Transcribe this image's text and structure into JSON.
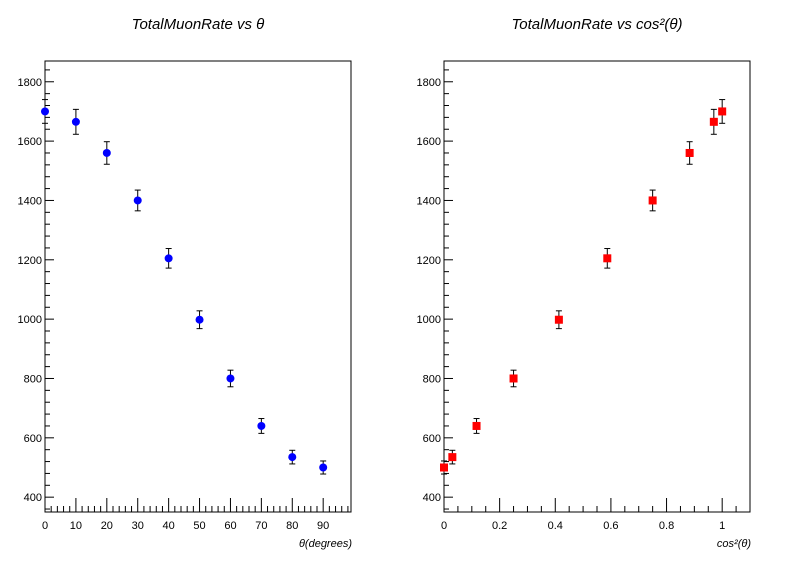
{
  "chart_data": [
    {
      "type": "scatter",
      "title": "TotalMuonRate  vs  θ",
      "xlabel": "θ(degrees)",
      "ylabel": "",
      "xlim": [
        0,
        99
      ],
      "ylim": [
        350,
        1870
      ],
      "xticks": [
        "0",
        "10",
        "20",
        "30",
        "40",
        "50",
        "60",
        "70",
        "80",
        "90"
      ],
      "yticks": [
        "400",
        "600",
        "800",
        "1000",
        "1200",
        "1400",
        "1600",
        "1800"
      ],
      "grid": false,
      "marker": "circle",
      "color": "#0000ff",
      "series": [
        {
          "x": [
            0,
            10,
            20,
            30,
            40,
            50,
            60,
            70,
            80,
            90
          ],
          "y": [
            1700,
            1665,
            1560,
            1400,
            1205,
            998,
            800,
            640,
            535,
            500
          ],
          "err": [
            40,
            42,
            38,
            35,
            33,
            30,
            28,
            25,
            23,
            22
          ]
        }
      ]
    },
    {
      "type": "scatter",
      "title": "TotalMuonRate  vs  cos²(θ)",
      "xlabel": "cos²(θ)",
      "ylabel": "",
      "xlim": [
        0,
        1.1
      ],
      "ylim": [
        350,
        1870
      ],
      "xticks": [
        "0",
        "0.2",
        "0.4",
        "0.6",
        "0.8",
        "1"
      ],
      "yticks": [
        "400",
        "600",
        "800",
        "1000",
        "1200",
        "1400",
        "1600",
        "1800"
      ],
      "grid": false,
      "marker": "square",
      "color": "#ff0000",
      "series": [
        {
          "x": [
            1,
            0.97,
            0.883,
            0.75,
            0.587,
            0.413,
            0.25,
            0.117,
            0.03,
            0
          ],
          "y": [
            1700,
            1665,
            1560,
            1400,
            1205,
            998,
            800,
            640,
            535,
            500
          ],
          "err": [
            40,
            42,
            38,
            35,
            33,
            30,
            28,
            25,
            23,
            22
          ]
        }
      ]
    }
  ]
}
